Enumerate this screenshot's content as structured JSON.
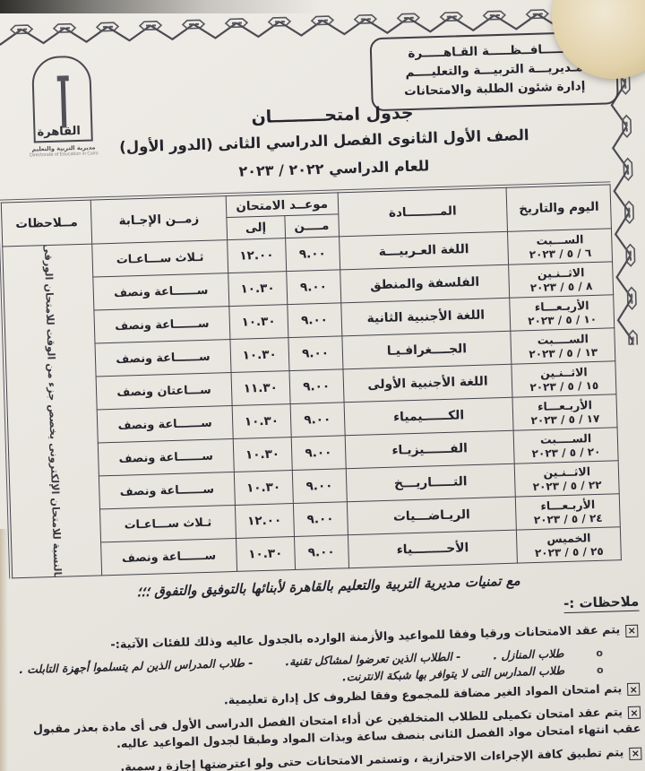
{
  "colors": {
    "paper": "#e9e6e0",
    "ink": "#23232b",
    "stamp": "#e3d3ac"
  },
  "header": {
    "agency_lines": [
      "محـــــافــظـــــة القـاهـــــرة",
      "مـديريـــة التربيـــة والتعليــــم",
      "إدارة شئون الطلبة والامتحانات"
    ],
    "logo": {
      "city": "القاهرة",
      "org": "مديرية التربية والتعليم",
      "org_en": "Directorate of Education in Cairo"
    }
  },
  "title": {
    "line1": "جدول امتحـــــــــان",
    "line2": "الصف الأول الثانوى الفصل الدراسي الثانى (الدور الأول)",
    "line3": "للعام الدراسي ٢٠٢٢ / ٢٠٢٣"
  },
  "table": {
    "headers": {
      "day": "اليوم والتاريخ",
      "subject": "المــــــــادة",
      "time": "موعــد الامتحان",
      "from": "مــــن",
      "to": "إلى",
      "duration": "زمــن الإجـابة",
      "notes": "مــلاحظات"
    },
    "rows": [
      {
        "day": "الســـبت",
        "date": "٦ / ٥ / ٢٠٢٣",
        "subject": "اللغة العـربيـــة",
        "from": "٩.٠٠",
        "to": "١٢.٠٠",
        "duration": "ثـلاث ســـاعـات"
      },
      {
        "day": "الاثــنـين",
        "date": "٨ / ٥ / ٢٠٢٣",
        "subject": "الفلسفة والمنطق",
        "from": "٩.٠٠",
        "to": "١٠.٣٠",
        "duration": "ســــــاعة ونصف"
      },
      {
        "day": "الأربـعـــاء",
        "date": "١٠ / ٥ / ٢٠٢٣",
        "subject": "اللغة الأجنبية الثانية",
        "from": "٩.٠٠",
        "to": "١٠.٣٠",
        "duration": "ســــــاعة ونصف"
      },
      {
        "day": "الســــبت",
        "date": "١٣ / ٥ / ٢٠٢٣",
        "subject": "الجــــغرافـيـا",
        "from": "٩.٠٠",
        "to": "١٠.٣٠",
        "duration": "ســــــاعة ونصف"
      },
      {
        "day": "الاثــنـين",
        "date": "١٥ / ٥ / ٢٠٢٣",
        "subject": "اللغة الأجنبية الأولى",
        "from": "٩.٠٠",
        "to": "١١.٣٠",
        "duration": "ســـاعتان ونصف"
      },
      {
        "day": "الأربـعـــاء",
        "date": "١٧ / ٥ / ٢٠٢٣",
        "subject": "الكــــــيمياء",
        "from": "٩.٠٠",
        "to": "١٠.٣٠",
        "duration": "ســــــاعة ونصف"
      },
      {
        "day": "الســــبت",
        "date": "٢٠ / ٥ / ٢٠٢٣",
        "subject": "الفــــــيزيـاء",
        "from": "٩.٠٠",
        "to": "١٠.٣٠",
        "duration": "ســــــاعة ونصف"
      },
      {
        "day": "الاثــنـين",
        "date": "٢٢ / ٥ / ٢٠٢٣",
        "subject": "التـــــاريـــخ",
        "from": "٩.٠٠",
        "to": "١٠.٣٠",
        "duration": "ســــــاعة ونصف"
      },
      {
        "day": "الأربـعـــاء",
        "date": "٢٤ / ٥ / ٢٠٢٣",
        "subject": "الريـاضـــيات",
        "from": "٩.٠٠",
        "to": "١٢.٠٠",
        "duration": "ثـلاث ســـاعـات"
      },
      {
        "day": "الخميس",
        "date": "٢٥ / ٥ / ٢٠٢٣",
        "subject": "الأحــــــــياء",
        "from": "٩.٠٠",
        "to": "١٠.٣٠",
        "duration": "ســــــاعة ونصف"
      }
    ],
    "notes_cell": "بالنسبة للامتحان الإلكترونى يخصص جزء من الوقت للامتحان الورقى"
  },
  "footer": {
    "wish": "مع تمنيات مديرية التربية والتعليم بالقاهرة لأبنائها بالتوفيق والتفوق ؛؛؛",
    "notes_heading": "ملاحظات :-",
    "bullet_check": "×",
    "bullet_circle": "o",
    "notes": [
      {
        "style": "checked",
        "text": "يتم عقد الامتحانات ورقيا وفقا للمواعيد والأزمنة الوارده بالجدول عاليه وذلك للفئات الآتية:-"
      },
      {
        "style": "circle",
        "items": [
          "طلاب المنازل .",
          "- الطلاب الذين تعرضوا لمشاكل تقنية.",
          "- طلاب المدراس الذين لم يتسلموا أجهزة التابلت ."
        ]
      },
      {
        "style": "circle",
        "items": [
          "طلاب المدارس التى لا يتوافر بها شبكة الانترنت."
        ]
      },
      {
        "style": "checked",
        "text": "يتم امتحان المواد الغير مضافة للمجموع وفقا لظروف كل إدارة تعليمية."
      },
      {
        "style": "checked",
        "text": "يتم عقد امتحان تكميلى للطلاب المتخلفين عن أداء امتحان الفصل الدراسى الأول فى أى مادة بعذر مقبول عقب انتهاء امتحان مواد الفصل الثانى بنصف ساعة وبذات المواد وطبقا لجدول المواعيد عاليه."
      },
      {
        "style": "checked",
        "text": "يتم تطبيق كافة الإجراءات الاحترازية ، وتستمر الامتحانات حتى ولو اعترضتها إجازة رسمية."
      }
    ]
  }
}
